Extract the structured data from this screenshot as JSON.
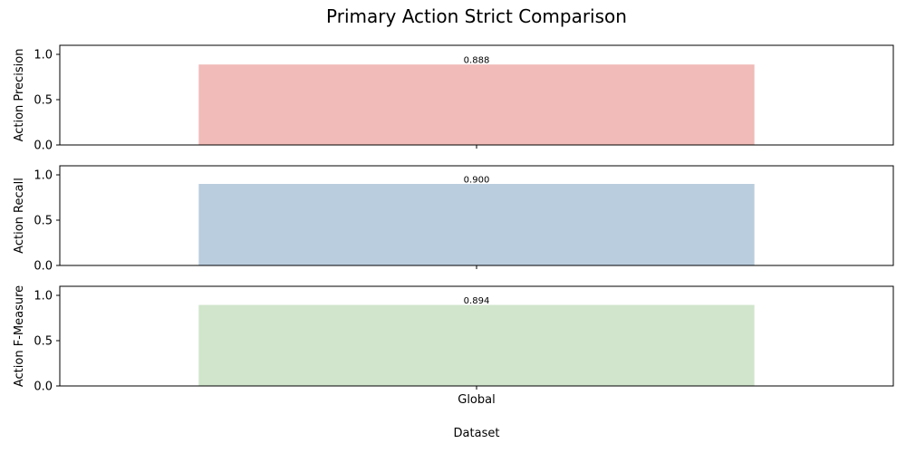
{
  "chart_data": {
    "type": "bar",
    "title": "Primary Action Strict Comparison",
    "xlabel": "Dataset",
    "categories": [
      "Global"
    ],
    "subplots": [
      {
        "ylabel": "Action Precision",
        "values": [
          0.888
        ],
        "value_labels": [
          "0.888"
        ],
        "color": "#f0bbb8",
        "ylim": [
          0,
          1.1
        ],
        "yticks": [
          0.0,
          0.5,
          1.0
        ],
        "ytick_labels": [
          "0.0",
          "0.5",
          "1.0"
        ]
      },
      {
        "ylabel": "Action Recall",
        "values": [
          0.9
        ],
        "value_labels": [
          "0.900"
        ],
        "color": "#bacdde",
        "ylim": [
          0,
          1.1
        ],
        "yticks": [
          0.0,
          0.5,
          1.0
        ],
        "ytick_labels": [
          "0.0",
          "0.5",
          "1.0"
        ]
      },
      {
        "ylabel": "Action F-Measure",
        "values": [
          0.894
        ],
        "value_labels": [
          "0.894"
        ],
        "color": "#d0e5cb",
        "ylim": [
          0,
          1.1
        ],
        "yticks": [
          0.0,
          0.5,
          1.0
        ],
        "ytick_labels": [
          "0.0",
          "0.5",
          "1.0"
        ]
      }
    ],
    "grid": false,
    "shared_x": true
  }
}
